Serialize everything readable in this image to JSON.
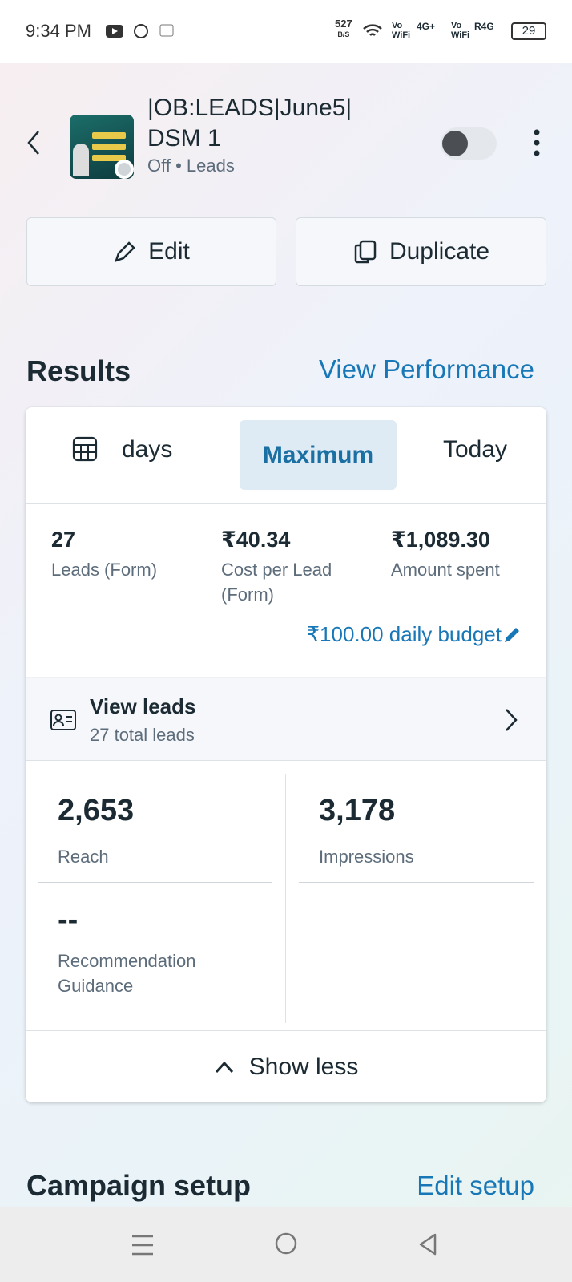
{
  "status_bar": {
    "time": "9:34 PM",
    "speed": "527",
    "speed_unit": "B/S",
    "vo": "Vo",
    "wifi": "WiFi",
    "sim1": "4G+",
    "sim2": "R4G",
    "battery": "29"
  },
  "header": {
    "title": "|OB:LEADS|June5| DSM 1",
    "status": "Off",
    "separator": "•",
    "objective": "Leads"
  },
  "buttons": {
    "edit": "Edit",
    "duplicate": "Duplicate"
  },
  "results": {
    "title": "Results",
    "link": "View Performance",
    "tabs": [
      "days",
      "Maximum",
      "Today"
    ],
    "metrics": [
      {
        "value": "27",
        "label": "Leads (Form)"
      },
      {
        "value": "₹40.34",
        "label": "Cost per Lead (Form)"
      },
      {
        "value": "₹1,089.30",
        "label": "Amount spent"
      }
    ],
    "budget": "₹100.00 daily budget",
    "view_leads": {
      "title": "View leads",
      "subtitle": "27 total leads"
    },
    "stats": [
      {
        "value": "2,653",
        "label": "Reach"
      },
      {
        "value": "3,178",
        "label": "Impressions"
      },
      {
        "value": "--",
        "label": "Recommendation Guidance"
      }
    ],
    "toggle": "Show less"
  },
  "campaign_setup": {
    "title": "Campaign setup",
    "link": "Edit setup"
  }
}
